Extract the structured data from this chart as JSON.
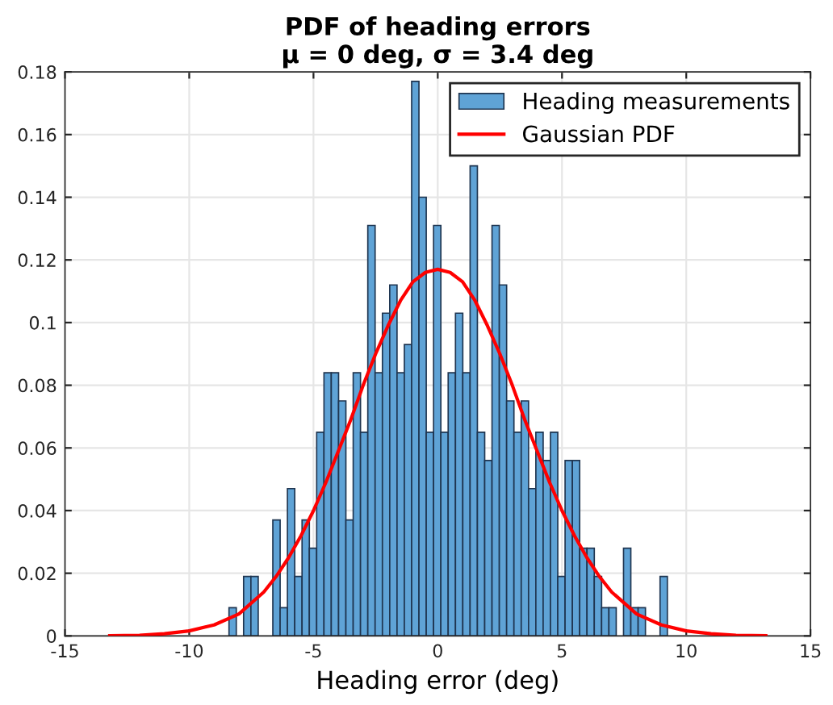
{
  "chart_data": {
    "type": "histogram",
    "title": "PDF of heading errors\nμ = 0 deg, σ = 3.4 deg",
    "xlabel": "Heading error (deg)",
    "bins": [
      -8.4,
      -8.106,
      -7.812,
      -7.518,
      -7.224,
      -6.93,
      -6.636,
      -6.342,
      -6.048,
      -5.754,
      -5.46,
      -5.166,
      -4.872,
      -4.578,
      -4.284,
      -3.99,
      -3.696,
      -3.402,
      -3.108,
      -2.814,
      -2.52,
      -2.226,
      -1.932,
      -1.638,
      -1.344,
      -1.05,
      -0.756,
      -0.462,
      -0.168,
      0.126,
      0.42,
      0.714,
      1.008,
      1.302,
      1.596,
      1.89,
      2.184,
      2.478,
      2.772,
      3.066,
      3.36,
      3.654,
      3.948,
      4.242,
      4.536,
      4.83,
      5.124,
      5.418,
      5.712,
      6.006,
      6.3,
      6.594,
      6.888,
      7.182,
      7.476,
      7.77,
      8.064,
      8.358,
      8.652,
      8.946,
      9.24
    ],
    "series": [
      {
        "name": "Heading measurements",
        "color": "#5fa3d6",
        "values": [
          0.009,
          0,
          0.019,
          0.019,
          0,
          0,
          0.037,
          0.009,
          0.047,
          0.019,
          0.037,
          0.028,
          0.065,
          0.084,
          0.084,
          0.075,
          0.037,
          0.084,
          0.065,
          0.131,
          0.084,
          0.103,
          0.112,
          0.084,
          0.093,
          0.177,
          0.14,
          0.065,
          0.131,
          0.065,
          0.084,
          0.103,
          0.084,
          0.15,
          0.065,
          0.056,
          0.131,
          0.112,
          0.075,
          0.065,
          0.075,
          0.047,
          0.065,
          0.056,
          0.065,
          0.019,
          0.056,
          0.056,
          0.028,
          0.028,
          0.019,
          0.009,
          0.009,
          0,
          0.028,
          0.009,
          0.009,
          0,
          0,
          0.019
        ]
      },
      {
        "name": "Gaussian PDF",
        "type": "line",
        "color": "#ff0000",
        "x": [
          -13.2,
          -12,
          -11,
          -10,
          -9,
          -8,
          -7,
          -6.5,
          -6,
          -5.5,
          -5,
          -4.5,
          -4,
          -3.5,
          -3,
          -2.5,
          -2,
          -1.5,
          -1,
          -0.5,
          0,
          0.5,
          1,
          1.5,
          2,
          2.5,
          3,
          3.5,
          4,
          4.5,
          5,
          5.5,
          6,
          6.5,
          7,
          8,
          9,
          10,
          11,
          12,
          13.2
        ],
        "values": [
          0.0001,
          0.0002,
          0.0007,
          0.0016,
          0.0035,
          0.007,
          0.014,
          0.019,
          0.025,
          0.032,
          0.04,
          0.049,
          0.059,
          0.069,
          0.08,
          0.09,
          0.099,
          0.107,
          0.113,
          0.116,
          0.117,
          0.116,
          0.113,
          0.107,
          0.099,
          0.09,
          0.08,
          0.069,
          0.059,
          0.049,
          0.04,
          0.032,
          0.025,
          0.019,
          0.014,
          0.007,
          0.0035,
          0.0016,
          0.0007,
          0.0002,
          0.0001
        ]
      }
    ],
    "xlim": [
      -15,
      15
    ],
    "xticks": [
      -15,
      -10,
      -5,
      0,
      5,
      10,
      15
    ],
    "ylim": [
      0,
      0.18
    ],
    "yticks": [
      0,
      0.02,
      0.04,
      0.06,
      0.08,
      0.1,
      0.12,
      0.14,
      0.16,
      0.18
    ],
    "grid": true,
    "legend": "top right"
  }
}
